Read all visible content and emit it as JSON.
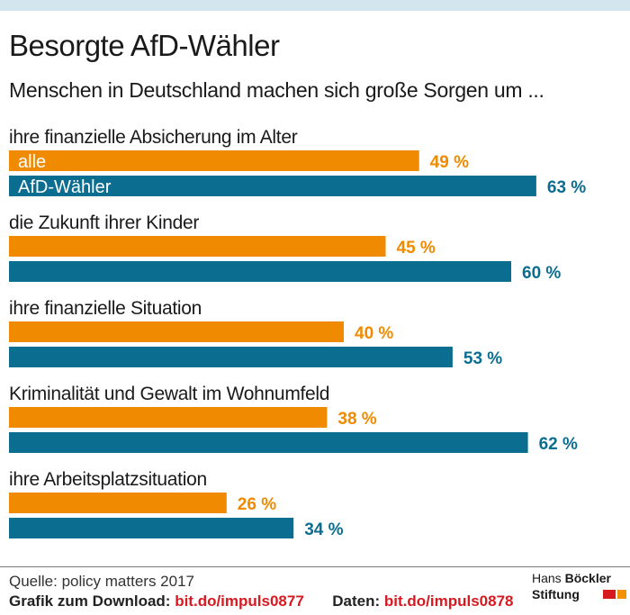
{
  "header": {
    "title": "Besorgte AfD-Wähler",
    "subtitle": "Menschen in Deutschland machen sich große Sorgen um ..."
  },
  "chart_data": {
    "type": "bar",
    "orientation": "horizontal",
    "categories": [
      "ihre finanzielle Absicherung im Alter",
      "die Zukunft ihrer Kinder",
      "ihre finanzielle Situation",
      "Kriminalität und Gewalt im Wohnumfeld",
      "ihre Arbeitsplatzsituation"
    ],
    "series": [
      {
        "name": "alle",
        "color": "#f08a00",
        "values": [
          49,
          45,
          40,
          38,
          26
        ]
      },
      {
        "name": "AfD-Wähler",
        "color": "#0b6e90",
        "values": [
          63,
          60,
          53,
          62,
          34
        ]
      }
    ],
    "unit": "%",
    "xlim": [
      0,
      100
    ],
    "grid": false,
    "legend": "inside-first-bars"
  },
  "footer": {
    "source": "Quelle: policy matters 2017",
    "download_label": "Grafik zum Download:",
    "download_link": "bit.do/impuls0877",
    "data_label": "Daten:",
    "data_link": "bit.do/impuls0878"
  },
  "logo": {
    "line1_a": "Hans",
    "line1_b": "Böckler",
    "line2": "Stiftung"
  }
}
